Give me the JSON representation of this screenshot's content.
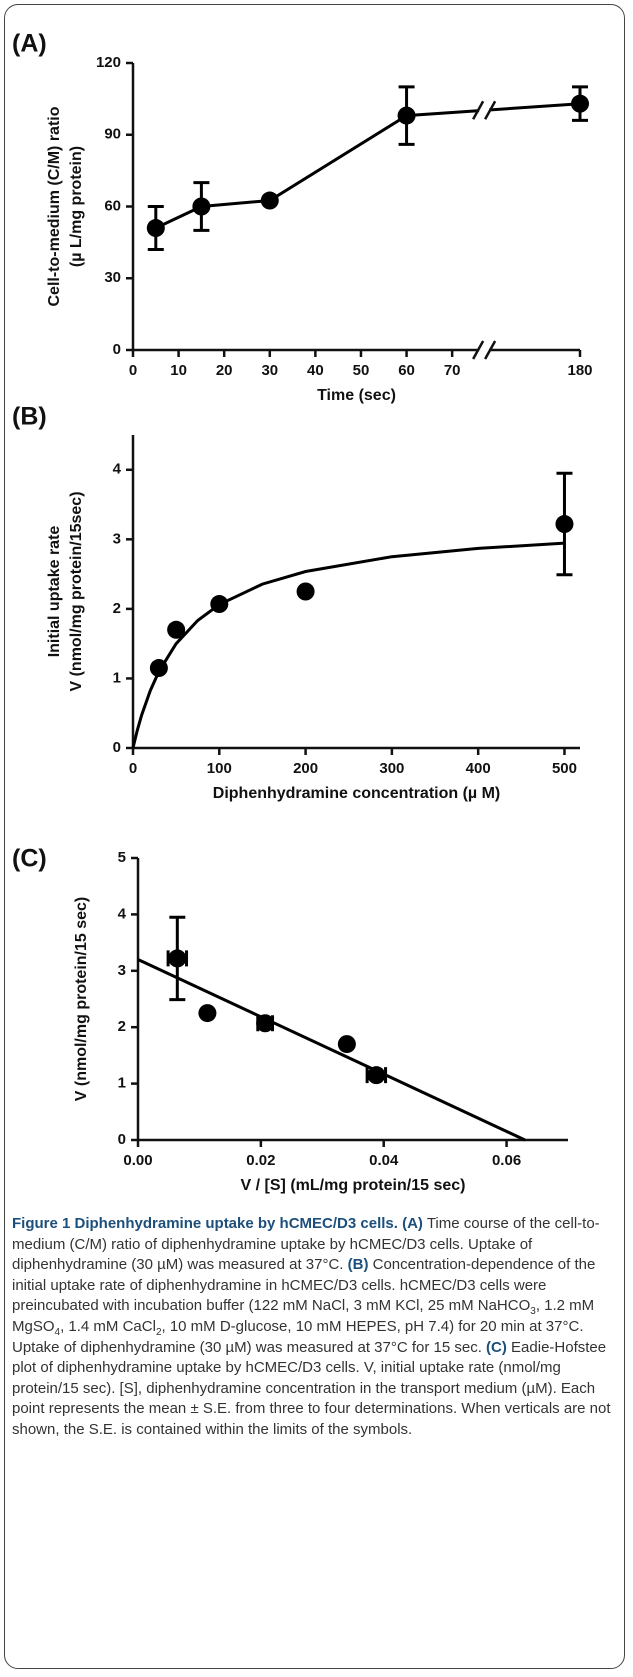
{
  "chart_data": [
    {
      "type": "line",
      "label": "(A)",
      "ylabel": [
        "Cell-to-medium (C/M) ratio",
        "(µ L/mg protein)"
      ],
      "xlabel": "Time (sec)",
      "x": [
        5,
        15,
        30,
        60,
        180
      ],
      "values": [
        51,
        60,
        62.5,
        98,
        103
      ],
      "errors": [
        9,
        10,
        null,
        12,
        7
      ],
      "xlim": [
        0,
        180
      ],
      "ylim": [
        0,
        120
      ],
      "xticks": [
        0,
        10,
        20,
        30,
        40,
        50,
        60,
        70,
        180
      ],
      "yticks": [
        0,
        30,
        60,
        90,
        120
      ],
      "x_axis_break": true,
      "color": "#000000"
    },
    {
      "type": "scatter",
      "label": "(B)",
      "ylabel": [
        "Initial uptake rate",
        "V (nmol/mg protein/15sec)"
      ],
      "xlabel": "Diphenhydramine concentration  (µ M)",
      "x": [
        30,
        50,
        100,
        200,
        500
      ],
      "values": [
        1.15,
        1.7,
        2.07,
        2.25,
        3.22
      ],
      "errors": [
        null,
        null,
        null,
        null,
        0.73
      ],
      "fit": {
        "x": [
          0,
          1,
          5,
          10,
          20,
          30,
          50,
          75,
          100,
          150,
          200,
          300,
          400,
          500
        ],
        "values": [
          0,
          0.054,
          0.254,
          0.471,
          0.825,
          1.1,
          1.5,
          1.833,
          2.063,
          2.357,
          2.538,
          2.75,
          2.87,
          2.946
        ]
      },
      "xlim": [
        0,
        518
      ],
      "ylim": [
        0,
        4.5
      ],
      "xticks": [
        0,
        100,
        200,
        300,
        400,
        500
      ],
      "yticks": [
        0,
        1,
        2,
        3,
        4
      ],
      "color": "#000000"
    },
    {
      "type": "scatter",
      "label": "(C)",
      "ylabel": [
        "V (nmol/mg protein/15 sec)"
      ],
      "xlabel": "V / [S] (mL/mg protein/15 sec)",
      "x": [
        0.0064,
        0.0113,
        0.0207,
        0.034,
        0.0388
      ],
      "values": [
        3.22,
        2.25,
        2.07,
        1.7,
        1.15
      ],
      "errors": [
        0.73,
        null,
        null,
        null,
        null
      ],
      "xerrors": [
        0.0015,
        null,
        0.0012,
        null,
        0.0015
      ],
      "fit": {
        "x": [
          0,
          0.063
        ],
        "values": [
          3.2,
          0
        ]
      },
      "xlim": [
        0,
        0.07
      ],
      "ylim": [
        0,
        5
      ],
      "xticks": [
        {
          "value": 0,
          "label": "0.00"
        },
        0.02,
        0.04,
        0.06
      ],
      "yticks": [
        0,
        1,
        2,
        3,
        4,
        5
      ],
      "color": "#000000"
    }
  ],
  "caption": [
    {
      "text": "Figure 1 Diphenhydramine uptake by hCMEC/D3 cells. (A)",
      "style": "bold"
    },
    {
      "text": " Time course of the cell-to-medium (C/M) ratio of diphenhydramine uptake by hCMEC/D3 cells. Uptake of diphenhydramine (30 µM) was measured at 37°C. ",
      "style": "normal"
    },
    {
      "text": "(B)",
      "style": "bold"
    },
    {
      "text": " Concentration-dependence of the initial uptake rate of diphenhydramine in hCMEC/D3 cells. hCMEC/D3 cells were preincubated with incubation buffer (122 mM NaCl, 3 mM KCl, 25 mM NaHCO",
      "style": "normal"
    },
    {
      "text": "3",
      "style": "sub"
    },
    {
      "text": ", 1.2 mM MgSO",
      "style": "normal"
    },
    {
      "text": "4",
      "style": "sub"
    },
    {
      "text": ", 1.4 mM CaCl",
      "style": "normal"
    },
    {
      "text": "2",
      "style": "sub"
    },
    {
      "text": ", 10 mM D-glucose, 10 mM HEPES, pH 7.4) for 20 min at 37°C. Uptake of diphenhydramine (30 µM) was measured at 37°C for 15 sec. ",
      "style": "normal"
    },
    {
      "text": "(C)",
      "style": "bold"
    },
    {
      "text": " Eadie-Hofstee plot of diphenhydramine uptake by hCMEC/D3 cells. V, initial uptake rate (nmol/mg protein/15 sec). [S], diphenhydramine concentration in the transport medium (µM). Each point represents the mean ± S.E. from three to four determinations. When verticals are not shown, the S.E. is contained within the limits of the symbols.",
      "style": "normal"
    }
  ]
}
